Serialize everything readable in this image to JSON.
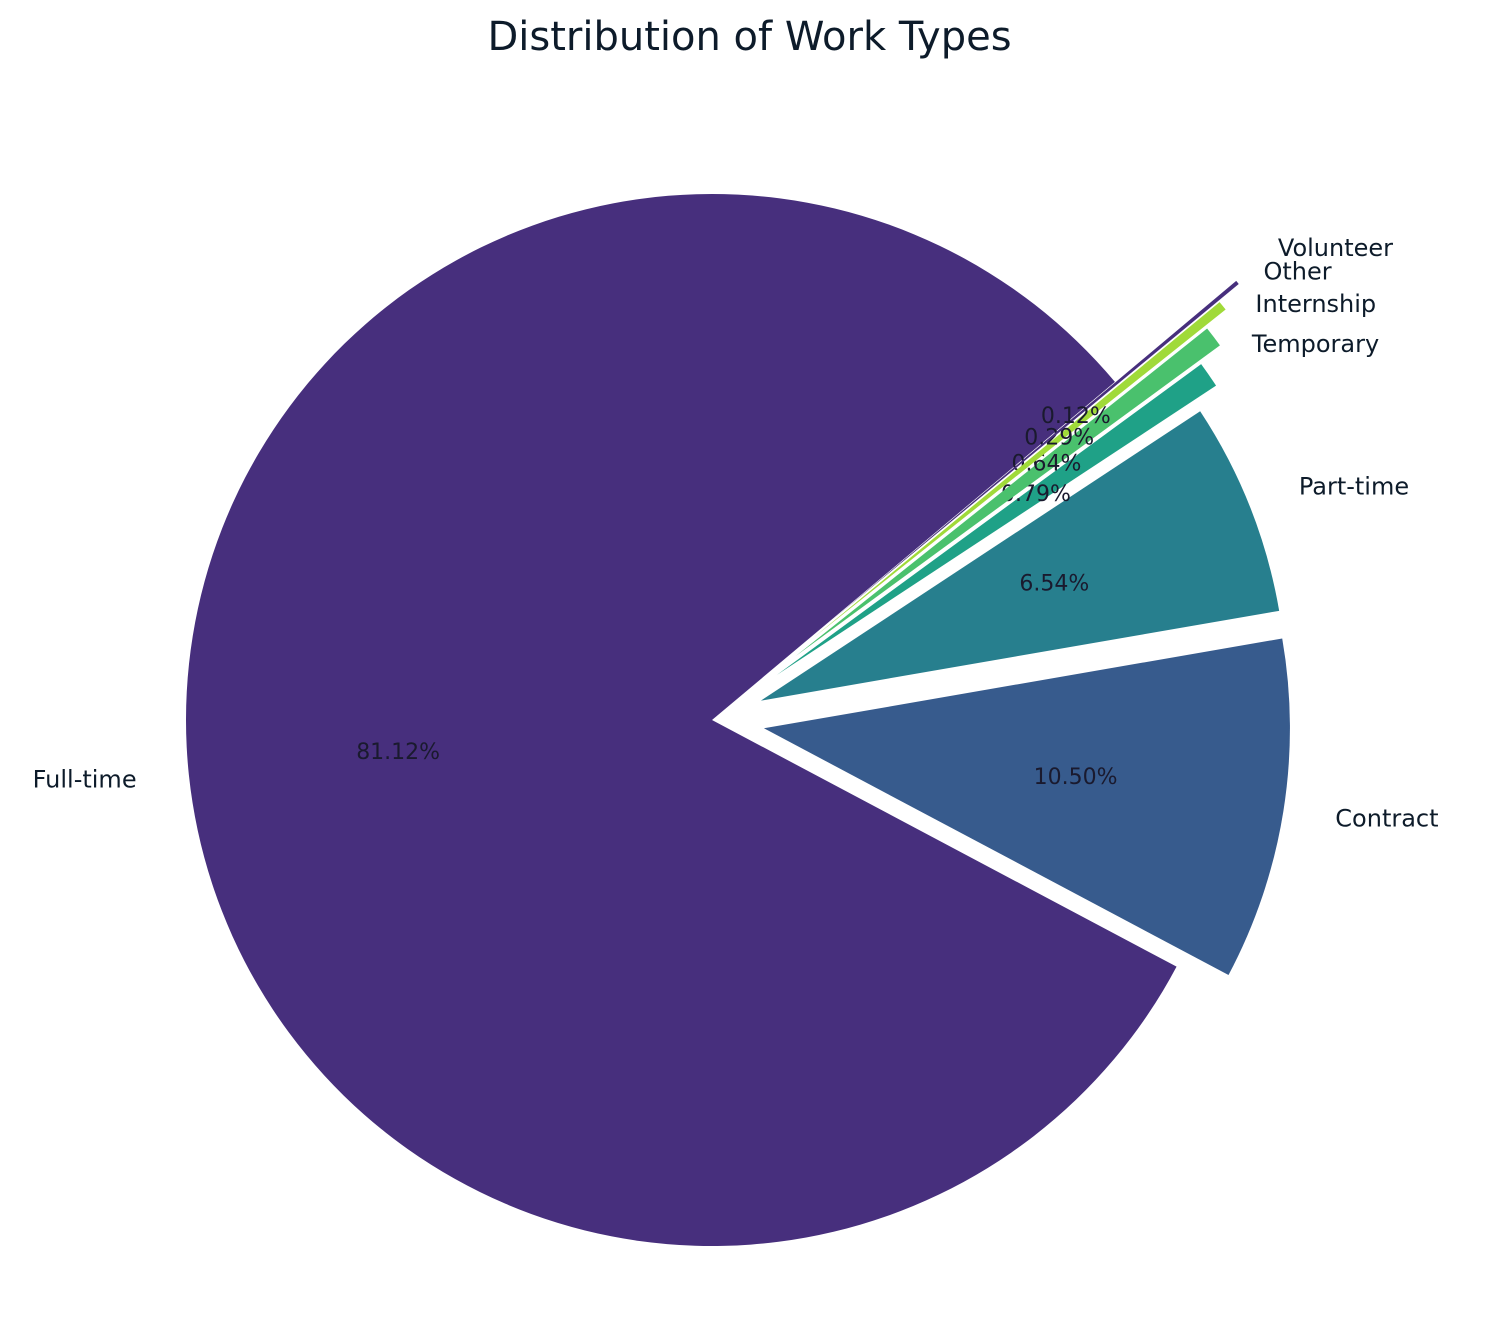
{
  "chart_data": {
    "type": "pie",
    "title": "Distribution of Work Types",
    "slices": [
      {
        "label": "Full-time",
        "value": 81.12,
        "pct_label": "81.12%",
        "color": "#472f7d"
      },
      {
        "label": "Contract",
        "value": 10.5,
        "pct_label": "10.50%",
        "color": "#375b8d"
      },
      {
        "label": "Part-time",
        "value": 6.54,
        "pct_label": "6.54%",
        "color": "#277f8e"
      },
      {
        "label": "Temporary",
        "value": 0.79,
        "pct_label": "0.79%",
        "color": "#1fa187"
      },
      {
        "label": "Internship",
        "value": 0.64,
        "pct_label": "0.64%",
        "color": "#4ac16d"
      },
      {
        "label": "Other",
        "value": 0.29,
        "pct_label": "0.29%",
        "color": "#a0da39"
      },
      {
        "label": "Volunteer",
        "value": 0.12,
        "pct_label": "0.12%",
        "color": "#472f7d"
      }
    ]
  }
}
